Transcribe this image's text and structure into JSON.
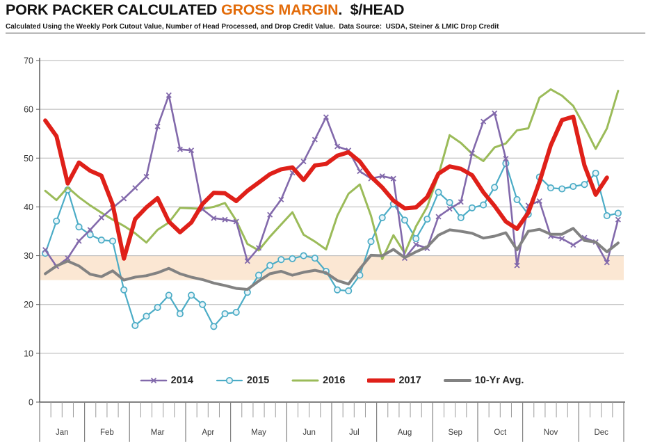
{
  "title": {
    "part1": "PORK PACKER CALCULATED ",
    "highlight": "GROSS MARGIN",
    "highlight_color": "#E36C0A",
    "part2": ".  $/HEAD"
  },
  "subtitle": "Calculated Using the Weekly Pork Cutout Value, Number of Head Processed, and Drop Credit Value.  Data Source:  USDA, Steiner & LMIC Drop Credit",
  "chart_data": {
    "type": "line",
    "x_unit": "weekly",
    "months": [
      "Jan",
      "Feb",
      "Mar",
      "Apr",
      "May",
      "Jun",
      "Jul",
      "Aug",
      "Sep",
      "Oct",
      "Nov",
      "Dec"
    ],
    "weeks_per_month": [
      4,
      4,
      5,
      4,
      5,
      4,
      4,
      5,
      4,
      4,
      5,
      4
    ],
    "ylim": [
      0,
      70
    ],
    "y_ticks": [
      0,
      10,
      20,
      30,
      40,
      50,
      60,
      70
    ],
    "grid": "horizontal",
    "legend_position": "bottom-center-inside",
    "highlight_band": {
      "from": 25,
      "to": 30,
      "color": "#fbe7d3"
    },
    "series": [
      {
        "name": "2014",
        "color": "#8269AB",
        "marker": "x",
        "stroke_width": 2.6,
        "values": [
          31.2,
          27.8,
          29.5,
          33.0,
          35.3,
          37.8,
          39.8,
          41.7,
          43.9,
          46.2,
          56.5,
          62.9,
          51.8,
          51.6,
          39.5,
          37.7,
          37.4,
          37.0,
          28.9,
          31.6,
          38.4,
          41.5,
          47.0,
          49.3,
          53.8,
          58.4,
          52.4,
          51.6,
          47.3,
          45.8,
          46.3,
          45.8,
          29.5,
          32.3,
          31.5,
          38.0,
          39.6,
          41.0,
          51.0,
          57.5,
          59.2,
          49.9,
          28.0,
          40.3,
          41.2,
          34.0,
          33.5,
          32.2,
          33.7,
          32.8,
          28.6,
          37.4
        ]
      },
      {
        "name": "2015",
        "color": "#4BACC6",
        "marker": "circle",
        "stroke_width": 2.2,
        "values": [
          30.5,
          37.1,
          43.5,
          35.9,
          34.3,
          33.2,
          33.0,
          23.0,
          15.7,
          17.6,
          19.4,
          21.9,
          18.1,
          21.9,
          20.0,
          15.5,
          18.1,
          18.4,
          22.5,
          26.0,
          28.0,
          29.2,
          29.4,
          30.0,
          29.5,
          26.8,
          23.0,
          22.8,
          26.0,
          32.9,
          37.8,
          40.6,
          37.3,
          33.5,
          37.5,
          43.0,
          40.9,
          37.8,
          39.8,
          40.4,
          44.0,
          48.9,
          41.5,
          38.5,
          46.1,
          43.9,
          43.7,
          44.2,
          44.6,
          46.9,
          38.2,
          38.7
        ]
      },
      {
        "name": "2016",
        "color": "#9BBB59",
        "marker": "none",
        "stroke_width": 3,
        "values": [
          43.3,
          41.4,
          44.0,
          42.0,
          40.3,
          38.8,
          37.4,
          36.1,
          34.6,
          32.7,
          35.3,
          36.8,
          39.8,
          39.7,
          39.6,
          40.0,
          40.8,
          37.2,
          32.4,
          31.1,
          33.9,
          36.4,
          38.9,
          34.3,
          32.9,
          31.3,
          38.2,
          42.7,
          44.6,
          38.2,
          29.3,
          34.2,
          30.5,
          36.0,
          40.0,
          46.5,
          54.7,
          53.1,
          50.9,
          49.4,
          52.2,
          53.0,
          55.7,
          56.1,
          62.4,
          64.1,
          62.8,
          60.7,
          56.5,
          51.9,
          56.1,
          63.8
        ]
      },
      {
        "name": "2017",
        "color": "#DF2019",
        "marker": "none",
        "stroke_width": 6,
        "values": [
          57.7,
          54.5,
          44.8,
          49.1,
          47.4,
          46.4,
          40.5,
          29.4,
          37.5,
          39.9,
          41.8,
          37.0,
          34.8,
          36.8,
          40.6,
          42.9,
          42.8,
          41.2,
          43.3,
          45.0,
          46.7,
          47.7,
          48.1,
          45.5,
          48.5,
          48.8,
          50.5,
          51.2,
          49.3,
          46.2,
          44.0,
          41.3,
          39.7,
          39.9,
          42.0,
          46.8,
          48.3,
          47.8,
          46.5,
          43.0,
          40.2,
          37.0,
          35.5,
          38.8,
          45.1,
          52.6,
          57.8,
          58.5,
          48.5,
          42.5,
          46.0,
          null
        ]
      },
      {
        "name": "10-Yr Avg.",
        "color": "#828282",
        "marker": "none",
        "stroke_width": 4,
        "values": [
          26.3,
          27.9,
          28.9,
          27.9,
          26.2,
          25.7,
          26.9,
          25.0,
          25.6,
          25.9,
          26.5,
          27.4,
          26.3,
          25.6,
          25.1,
          24.4,
          23.9,
          23.3,
          23.1,
          24.8,
          26.3,
          26.8,
          26.0,
          26.6,
          27.0,
          26.5,
          24.9,
          24.2,
          27.3,
          30.1,
          30.0,
          31.3,
          29.6,
          30.8,
          31.8,
          34.2,
          35.3,
          35.0,
          34.6,
          33.6,
          34.0,
          34.7,
          31.2,
          35.0,
          35.4,
          34.4,
          34.4,
          35.6,
          33.1,
          32.8,
          30.8,
          32.6
        ]
      }
    ]
  }
}
